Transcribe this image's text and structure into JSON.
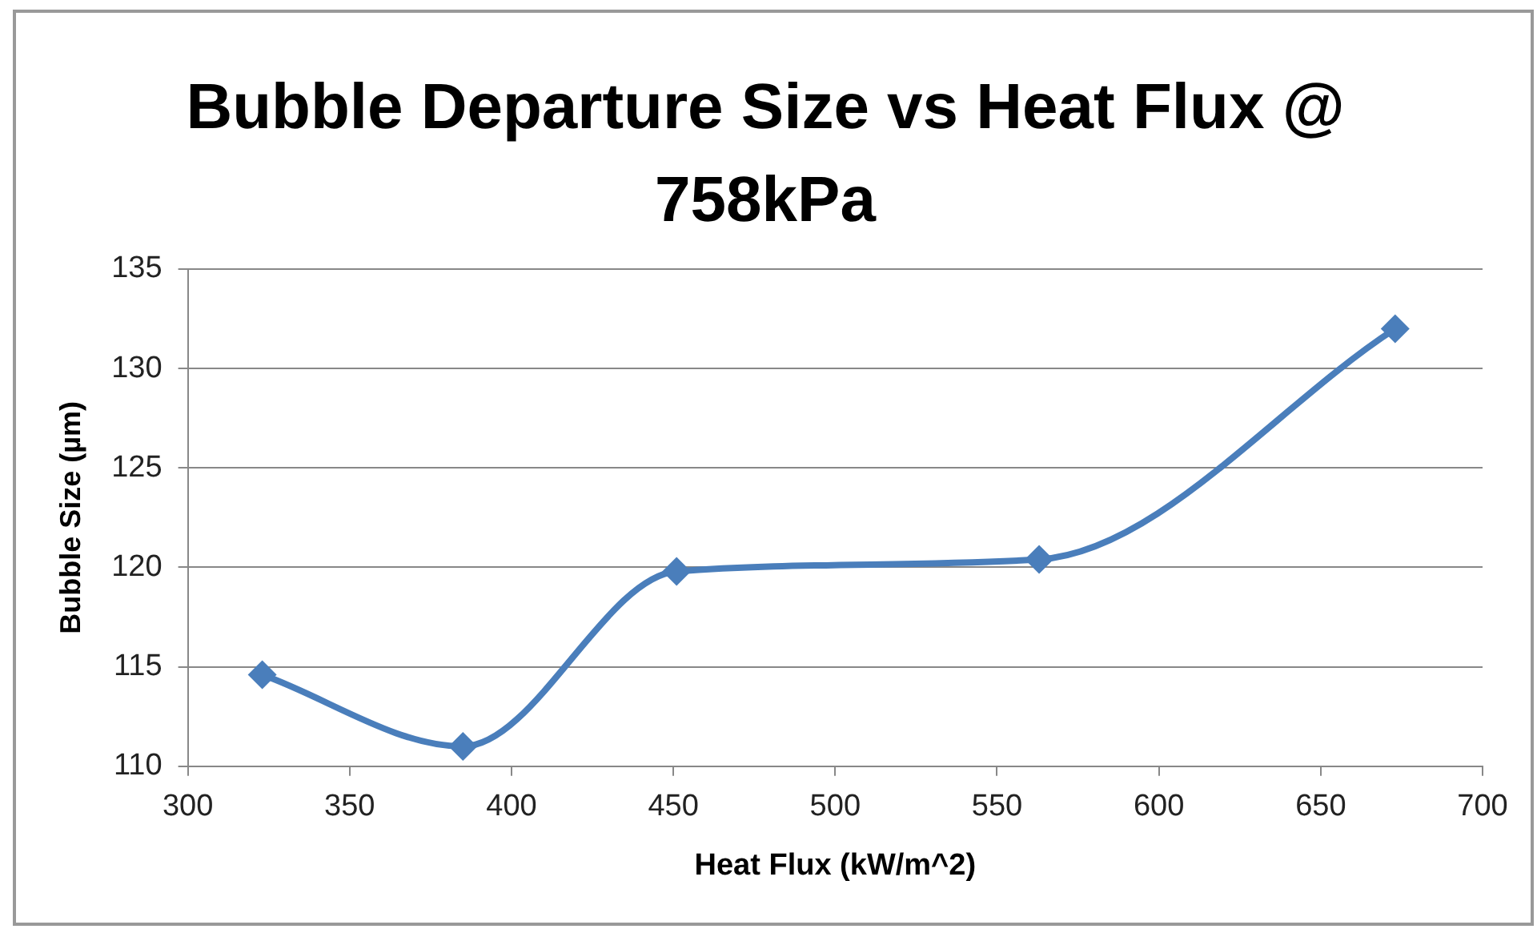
{
  "chart_data": {
    "type": "line",
    "title": "Bubble Departure Size vs Heat Flux @ 758kPa",
    "xlabel": "Heat Flux (kW/m^2)",
    "ylabel": "Bubble Size (µm)",
    "x": [
      323,
      385,
      451,
      563,
      673
    ],
    "series": [
      {
        "color": "#4a7ebb",
        "values": [
          114.6,
          111.0,
          119.8,
          120.4,
          132.0
        ]
      }
    ],
    "xlim": [
      300,
      700
    ],
    "xticks": [
      300,
      350,
      400,
      450,
      500,
      550,
      600,
      650,
      700
    ],
    "ylim": [
      110,
      135
    ],
    "yticks": [
      110,
      115,
      120,
      125,
      130,
      135
    ],
    "grid": "y",
    "marker": "diamond",
    "line_style": "solid",
    "legend": false
  }
}
